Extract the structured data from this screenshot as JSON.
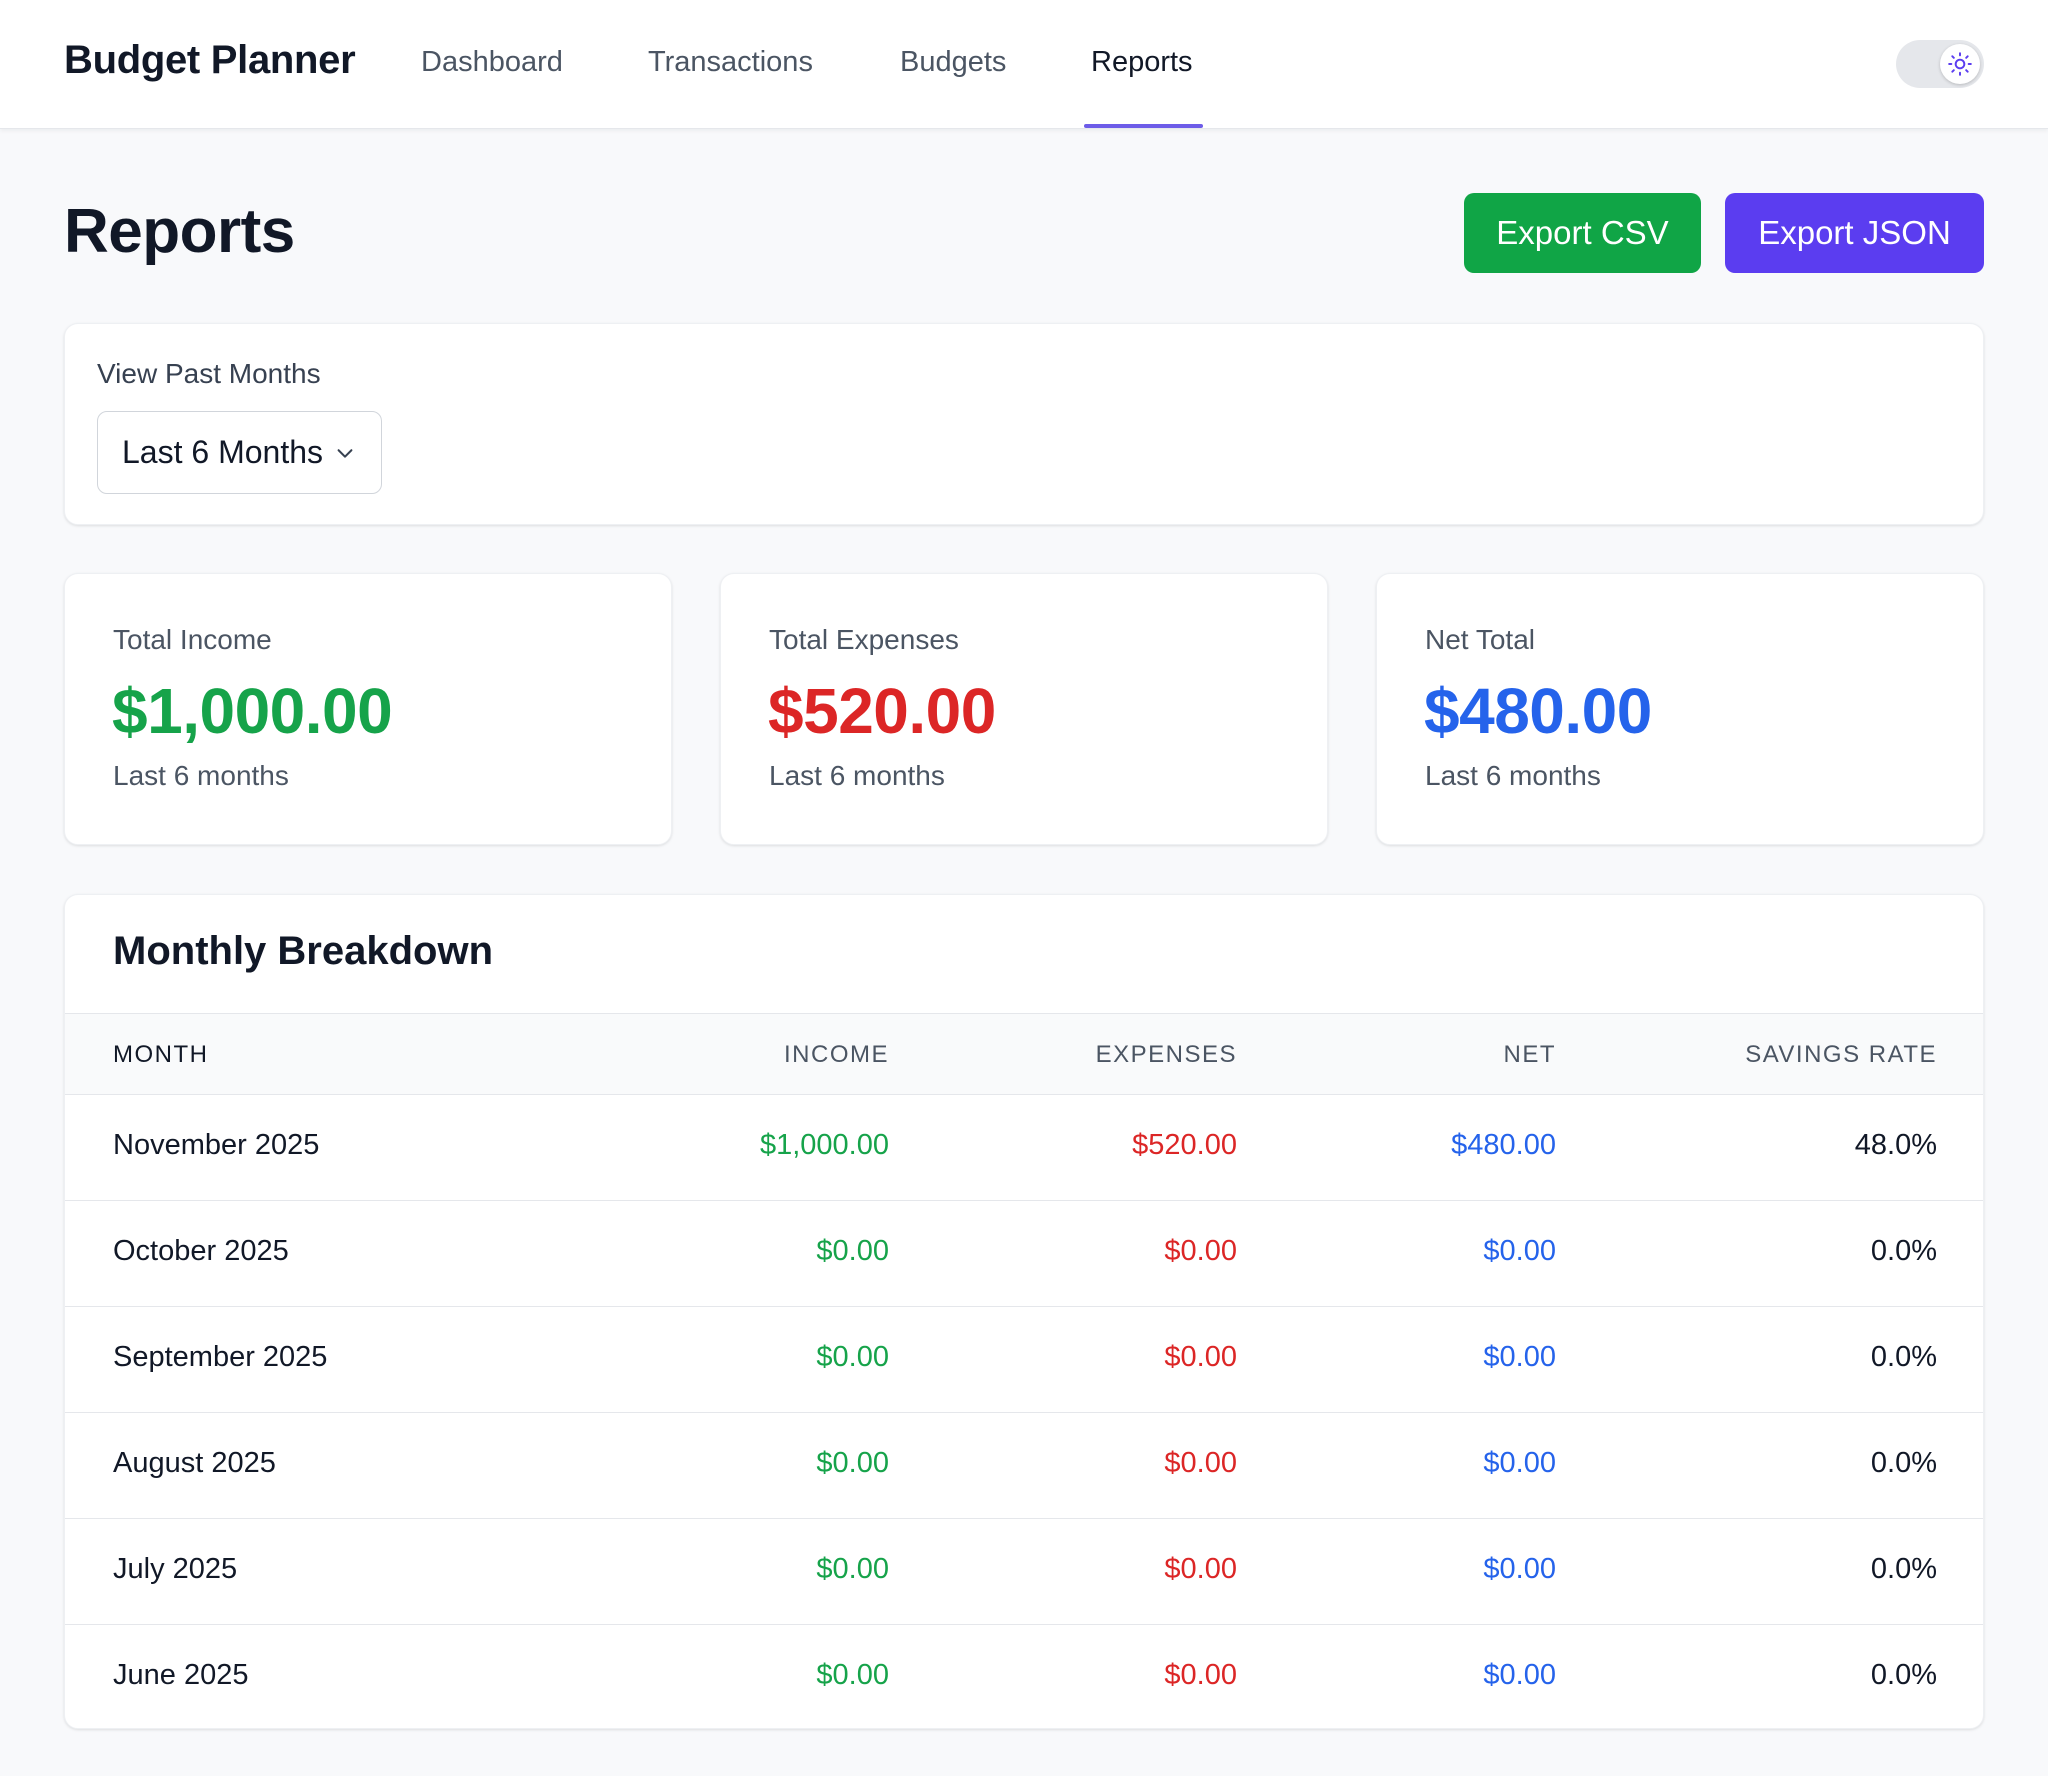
{
  "app": {
    "brand": "Budget Planner"
  },
  "nav": {
    "items": [
      {
        "label": "Dashboard"
      },
      {
        "label": "Transactions"
      },
      {
        "label": "Budgets"
      },
      {
        "label": "Reports",
        "active": true
      }
    ]
  },
  "theme_toggle": {
    "icon": "sun-icon"
  },
  "page": {
    "title": "Reports"
  },
  "actions": {
    "export_csv": "Export CSV",
    "export_json": "Export JSON"
  },
  "filter": {
    "label": "View Past Months",
    "selected": "Last 6 Months"
  },
  "stats": [
    {
      "label": "Total Income",
      "value": "$1,000.00",
      "sub": "Last 6 months",
      "color": "#16a34a"
    },
    {
      "label": "Total Expenses",
      "value": "$520.00",
      "sub": "Last 6 months",
      "color": "#dc2626"
    },
    {
      "label": "Net Total",
      "value": "$480.00",
      "sub": "Last 6 months",
      "color": "#2563eb"
    }
  ],
  "breakdown": {
    "title": "Monthly Breakdown",
    "columns": [
      "MONTH",
      "INCOME",
      "EXPENSES",
      "NET",
      "SAVINGS RATE"
    ],
    "rows": [
      {
        "month": "November 2025",
        "income": "$1,000.00",
        "expenses": "$520.00",
        "net": "$480.00",
        "rate": "48.0%"
      },
      {
        "month": "October 2025",
        "income": "$0.00",
        "expenses": "$0.00",
        "net": "$0.00",
        "rate": "0.0%"
      },
      {
        "month": "September 2025",
        "income": "$0.00",
        "expenses": "$0.00",
        "net": "$0.00",
        "rate": "0.0%"
      },
      {
        "month": "August 2025",
        "income": "$0.00",
        "expenses": "$0.00",
        "net": "$0.00",
        "rate": "0.0%"
      },
      {
        "month": "July 2025",
        "income": "$0.00",
        "expenses": "$0.00",
        "net": "$0.00",
        "rate": "0.0%"
      },
      {
        "month": "June 2025",
        "income": "$0.00",
        "expenses": "$0.00",
        "net": "$0.00",
        "rate": "0.0%"
      }
    ]
  },
  "colors": {
    "accent": "#6d5ce8",
    "income": "#16a34a",
    "expense": "#dc2626",
    "net": "#2563eb",
    "csv_button": "#10a546",
    "json_button": "#5b3df0"
  }
}
